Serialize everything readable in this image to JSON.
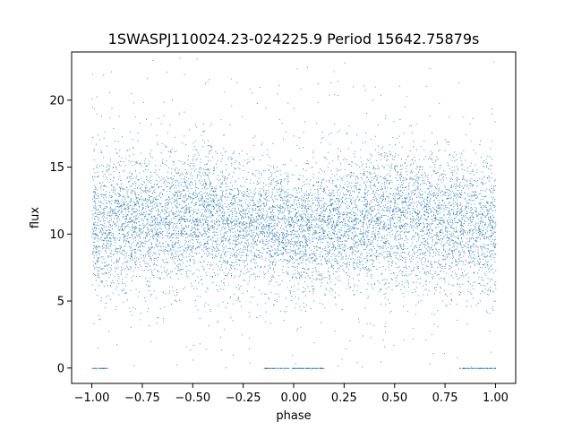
{
  "chart_data": {
    "type": "scatter",
    "title": "1SWASPJ110024.23-024225.9 Period 15642.75879s",
    "xlabel": "phase",
    "ylabel": "flux",
    "xlim": [
      -1.1,
      1.1
    ],
    "ylim": [
      -1.15,
      23.6
    ],
    "xticks": [
      -1.0,
      -0.75,
      -0.5,
      -0.25,
      0.0,
      0.25,
      0.5,
      0.75,
      1.0
    ],
    "xtick_labels": [
      "−1.00",
      "−0.75",
      "−0.50",
      "−0.25",
      "0.00",
      "0.25",
      "0.50",
      "0.75",
      "1.00"
    ],
    "yticks": [
      0,
      5,
      10,
      15,
      20
    ],
    "ytick_labels": [
      "0",
      "5",
      "10",
      "15",
      "20"
    ],
    "grid": false,
    "color": "#1f77b4",
    "series": [
      {
        "x_range": [
          -1.0,
          1.0
        ],
        "flux_profile": {
          "phase": [
            -1.0,
            -0.75,
            -0.5,
            -0.25,
            0.0,
            0.25,
            0.5,
            0.75,
            1.0
          ],
          "median_flux": [
            10.5,
            11.0,
            11.3,
            10.8,
            10.2,
            10.8,
            11.3,
            11.0,
            10.5
          ],
          "core_spread": [
            2.5,
            2.6,
            2.7,
            2.5,
            2.2,
            2.5,
            2.7,
            2.6,
            2.5
          ],
          "outer_range": [
            0.0,
            23.2
          ]
        },
        "zero_flux_phase_groups": [
          [
            -1.0,
            -0.92
          ],
          [
            -0.15,
            0.15
          ],
          [
            0.82,
            1.0
          ]
        ]
      }
    ]
  }
}
